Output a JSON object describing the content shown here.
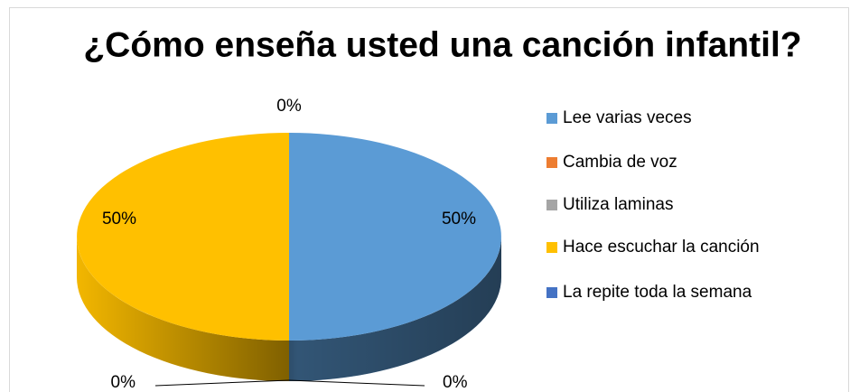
{
  "chart_data": {
    "type": "pie3d",
    "title": "¿Cómo enseña usted una canción infantil?",
    "categories": [
      "Lee varias veces",
      "Cambia de voz",
      "Utiliza laminas",
      "Hace escuchar la canción",
      "La repite toda la semana"
    ],
    "values": [
      50,
      0,
      0,
      50,
      0
    ],
    "value_labels": [
      "50%",
      "0%",
      "0%",
      "50%",
      "0%"
    ],
    "colors": [
      "#5b9bd5",
      "#ed7d31",
      "#a5a5a5",
      "#ffc000",
      "#4472c4"
    ],
    "legend": "right"
  }
}
